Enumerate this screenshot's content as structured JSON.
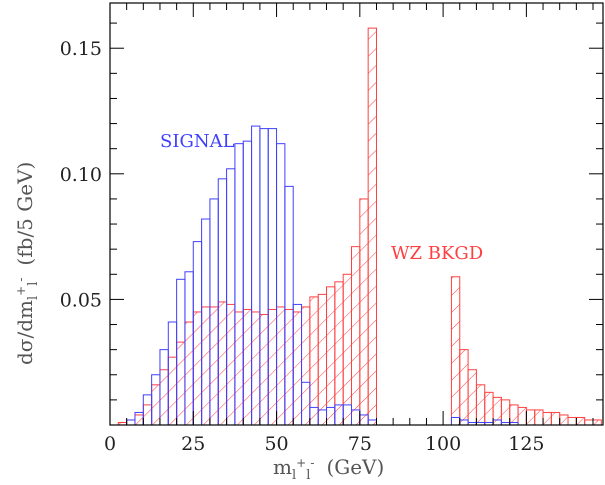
{
  "chart_data": {
    "type": "bar",
    "xlabel": {
      "base": "m",
      "sub1": "l",
      "sup1": "+",
      "sub2": "l",
      "sup2": "-",
      "unit": "(GeV)"
    },
    "ylabel": {
      "prefix": "dσ/dm",
      "sub1": "l",
      "sup1": "+",
      "sub2": "l",
      "sup2": "-",
      "unit": "(fb/5 GeV)"
    },
    "xlim": [
      0,
      148
    ],
    "ylim": [
      0,
      0.168
    ],
    "x_ticks": [
      0,
      25,
      50,
      75,
      100,
      125
    ],
    "x_tick_labels": [
      "0",
      "25",
      "50",
      "75",
      "100",
      "125"
    ],
    "y_ticks": [
      0.05,
      0.1,
      0.15
    ],
    "y_tick_labels": [
      "0.05",
      "0.10",
      "0.15"
    ],
    "bin_width": 2.5,
    "series": [
      {
        "name": "WZ BKGD",
        "color": "#ff4040",
        "style": "hatched-fill",
        "bin_starts": [
          2.5,
          5,
          7.5,
          10,
          12.5,
          15,
          17.5,
          20,
          22.5,
          25,
          27.5,
          30,
          32.5,
          35,
          37.5,
          40,
          42.5,
          45,
          47.5,
          50,
          52.5,
          55,
          57.5,
          60,
          62.5,
          65,
          67.5,
          70,
          72.5,
          75,
          77.5,
          102.5,
          105,
          107.5,
          110,
          112.5,
          115,
          117.5,
          120,
          122.5,
          125,
          127.5,
          130,
          132.5,
          135,
          137.5,
          140,
          142.5,
          145
        ],
        "values": [
          0.001,
          0.002,
          0.004,
          0.008,
          0.016,
          0.022,
          0.027,
          0.033,
          0.041,
          0.045,
          0.047,
          0.047,
          0.049,
          0.048,
          0.045,
          0.046,
          0.045,
          0.044,
          0.046,
          0.047,
          0.046,
          0.045,
          0.047,
          0.051,
          0.052,
          0.055,
          0.057,
          0.06,
          0.071,
          0.09,
          0.158,
          0.059,
          0.03,
          0.022,
          0.016,
          0.013,
          0.011,
          0.01,
          0.008,
          0.007,
          0.006,
          0.006,
          0.005,
          0.005,
          0.004,
          0.003,
          0.003,
          0.002,
          0.002
        ]
      },
      {
        "name": "SIGNAL",
        "color": "#4040ff",
        "style": "step",
        "bin_starts": [
          2.5,
          5,
          7.5,
          10,
          12.5,
          15,
          17.5,
          20,
          22.5,
          25,
          27.5,
          30,
          32.5,
          35,
          37.5,
          40,
          42.5,
          45,
          47.5,
          50,
          52.5,
          55,
          57.5,
          60,
          62.5,
          65,
          67.5,
          70,
          72.5,
          75,
          77.5,
          102.5,
          105,
          107.5,
          110,
          112.5,
          115,
          117.5,
          120,
          122.5,
          125
        ],
        "values": [
          0.0,
          0.002,
          0.005,
          0.012,
          0.02,
          0.03,
          0.041,
          0.058,
          0.061,
          0.073,
          0.082,
          0.09,
          0.098,
          0.102,
          0.112,
          0.113,
          0.119,
          0.118,
          0.118,
          0.112,
          0.095,
          0.048,
          0.017,
          0.007,
          0.006,
          0.007,
          0.008,
          0.008,
          0.006,
          0.004,
          0.002,
          0.003,
          0.002,
          0.001,
          0.001,
          0.001,
          0.002,
          0.001,
          0.001,
          0.0,
          0.0
        ]
      }
    ]
  }
}
